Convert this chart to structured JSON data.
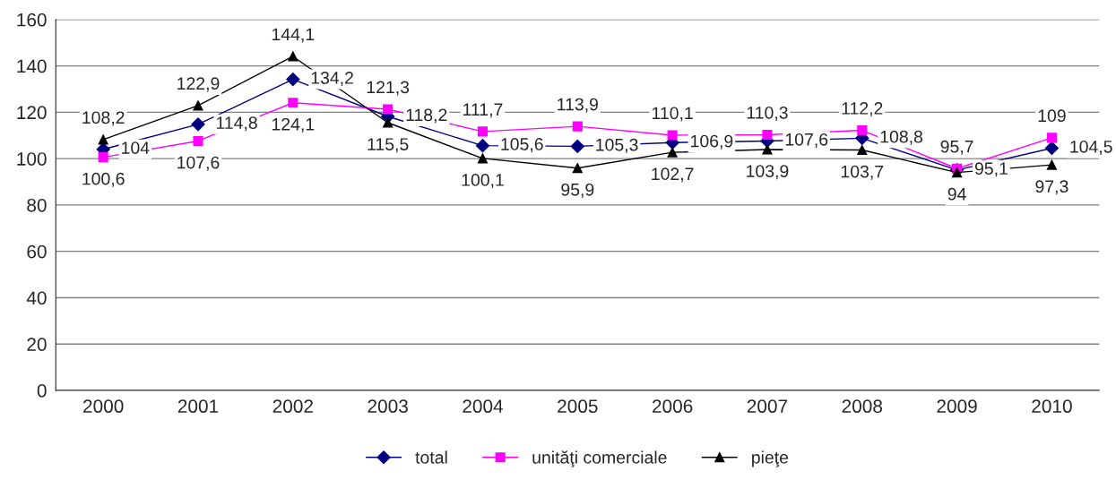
{
  "chart_data": {
    "type": "line",
    "categories": [
      "2000",
      "2001",
      "2002",
      "2003",
      "2004",
      "2005",
      "2006",
      "2007",
      "2008",
      "2009",
      "2010"
    ],
    "series": [
      {
        "name": "total",
        "color": "#000080",
        "marker": "diamond",
        "values": [
          104,
          114.8,
          134.2,
          118.2,
          105.6,
          105.3,
          106.9,
          107.6,
          108.8,
          95.1,
          104.5
        ],
        "value_labels": [
          "104",
          "114,8",
          "134,2",
          "118,2",
          "105,6",
          "105,3",
          "106,9",
          "107,6",
          "108,8",
          "95,1",
          "104,5"
        ]
      },
      {
        "name": "unităţi comerciale",
        "color": "#ff00ff",
        "marker": "square",
        "values": [
          100.6,
          107.6,
          124.1,
          121.3,
          111.7,
          113.9,
          110.1,
          110.3,
          112.2,
          95.7,
          109
        ],
        "value_labels": [
          "100,6",
          "107,6",
          "124,1",
          "121,3",
          "111,7",
          "113,9",
          "110,1",
          "110,3",
          "112,2",
          "95,7",
          "109"
        ]
      },
      {
        "name": "pieţe",
        "color": "#000000",
        "marker": "triangle",
        "values": [
          108.2,
          122.9,
          144.1,
          115.5,
          100.1,
          95.9,
          102.7,
          103.9,
          103.7,
          94,
          97.3
        ],
        "value_labels": [
          "108,2",
          "122,9",
          "144,1",
          "115,5",
          "100,1",
          "95,9",
          "102,7",
          "103,9",
          "103,7",
          "94",
          "97,3"
        ]
      }
    ],
    "ylim": [
      0,
      160
    ],
    "yticks": [
      0,
      20,
      40,
      60,
      80,
      100,
      120,
      140,
      160
    ],
    "grid": "y",
    "legend": "bottom",
    "line_style": "solid"
  }
}
